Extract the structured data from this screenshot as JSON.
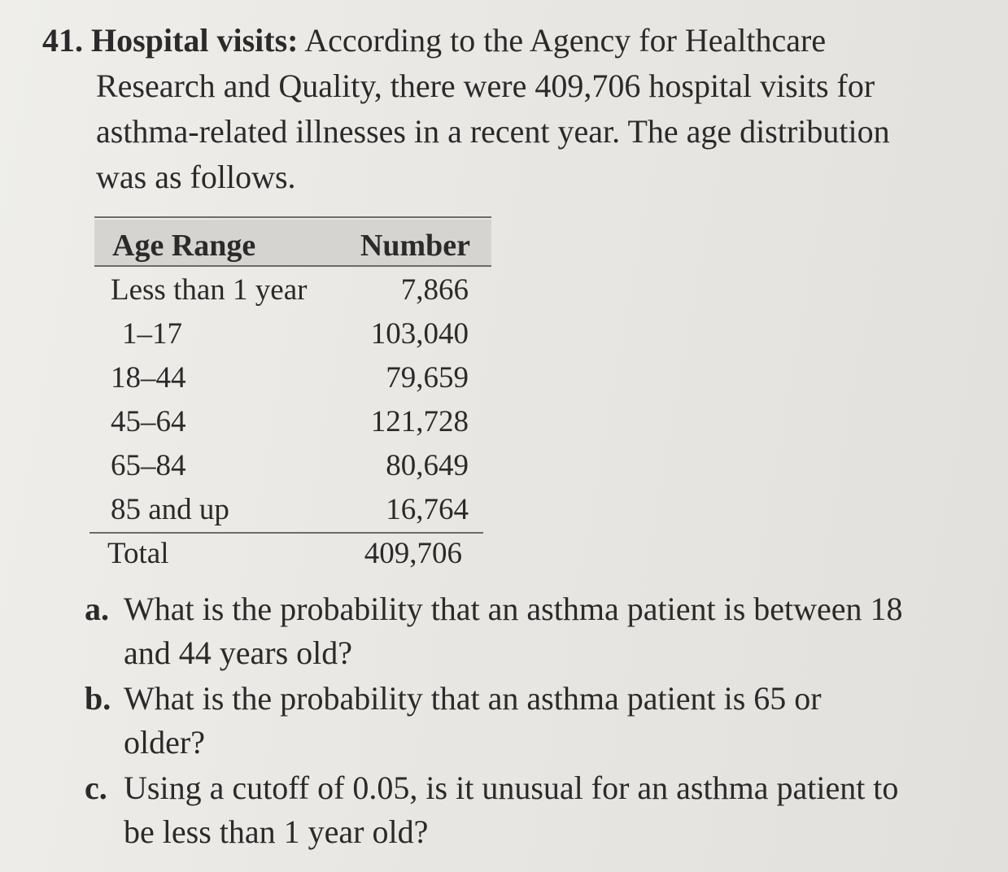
{
  "problem": {
    "number": "41.",
    "title": "Hospital visits:",
    "lines": [
      "According to the Agency for Healthcare",
      "Research and Quality, there were 409,706 hospital visits for",
      "asthma-related illnesses in a recent year. The age distribution",
      "was as follows."
    ]
  },
  "table": {
    "headers": [
      "Age Range",
      "Number"
    ],
    "rows": [
      {
        "age": "Less than 1 year",
        "number": "7,866"
      },
      {
        "age": "1–17",
        "number": "103,040"
      },
      {
        "age": "18–44",
        "number": "79,659"
      },
      {
        "age": "45–64",
        "number": "121,728"
      },
      {
        "age": "65–84",
        "number": "80,649"
      },
      {
        "age": "85 and up",
        "number": "16,764"
      }
    ],
    "total": {
      "age": "Total",
      "number": "409,706"
    }
  },
  "questions": [
    {
      "letter": "a.",
      "lines": [
        "What is the probability that an asthma patient is between 18",
        "and 44 years old?"
      ]
    },
    {
      "letter": "b.",
      "lines": [
        "What is the probability that an asthma patient is 65 or",
        "older?"
      ]
    },
    {
      "letter": "c.",
      "lines": [
        "Using a cutoff of 0.05, is it unusual for an asthma patient to",
        "be less than 1 year old?"
      ]
    }
  ]
}
